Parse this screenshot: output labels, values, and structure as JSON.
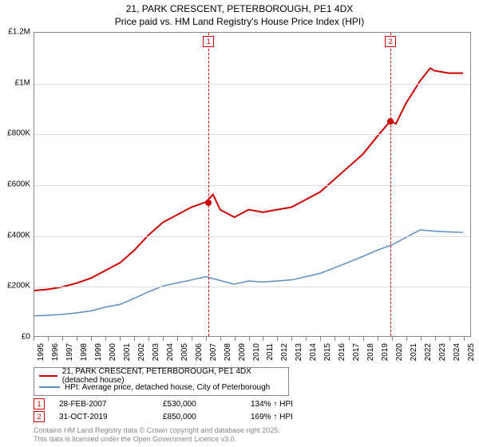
{
  "title": {
    "line1": "21, PARK CRESCENT, PETERBOROUGH, PE1 4DX",
    "line2": "Price paid vs. HM Land Registry's House Price Index (HPI)"
  },
  "chart": {
    "type": "line",
    "x_years": [
      1995,
      1996,
      1997,
      1998,
      1999,
      2000,
      2001,
      2002,
      2003,
      2004,
      2005,
      2006,
      2007,
      2008,
      2009,
      2010,
      2011,
      2012,
      2013,
      2014,
      2015,
      2016,
      2017,
      2018,
      2019,
      2020,
      2021,
      2022,
      2023,
      2024,
      2025
    ],
    "y_ticks": [
      0,
      200000,
      400000,
      600000,
      800000,
      1000000,
      1200000
    ],
    "y_tick_labels": [
      "£0",
      "£200K",
      "£400K",
      "£600K",
      "£800K",
      "£1M",
      "£1.2M"
    ],
    "ylim": [
      0,
      1200000
    ],
    "xlim": [
      1995,
      2025.5
    ],
    "background_color": "#ffffff",
    "grid_color": "#dddddd",
    "border_color": "#888888",
    "series": [
      {
        "name": "property",
        "label": "21, PARK CRESCENT, PETERBOROUGH, PE1 4DX (detached house)",
        "color": "#cc0000",
        "line_width": 2,
        "points": [
          [
            1995,
            180000
          ],
          [
            1996,
            185000
          ],
          [
            1997,
            195000
          ],
          [
            1998,
            210000
          ],
          [
            1999,
            230000
          ],
          [
            2000,
            260000
          ],
          [
            2001,
            290000
          ],
          [
            2002,
            340000
          ],
          [
            2003,
            400000
          ],
          [
            2004,
            450000
          ],
          [
            2005,
            480000
          ],
          [
            2006,
            510000
          ],
          [
            2007,
            530000
          ],
          [
            2007.5,
            560000
          ],
          [
            2008,
            500000
          ],
          [
            2009,
            470000
          ],
          [
            2010,
            500000
          ],
          [
            2011,
            490000
          ],
          [
            2012,
            500000
          ],
          [
            2013,
            510000
          ],
          [
            2014,
            540000
          ],
          [
            2015,
            570000
          ],
          [
            2016,
            620000
          ],
          [
            2017,
            670000
          ],
          [
            2018,
            720000
          ],
          [
            2019,
            790000
          ],
          [
            2019.9,
            850000
          ],
          [
            2020.3,
            840000
          ],
          [
            2021,
            920000
          ],
          [
            2022,
            1010000
          ],
          [
            2022.7,
            1060000
          ],
          [
            2023,
            1050000
          ],
          [
            2024,
            1040000
          ],
          [
            2025,
            1040000
          ]
        ]
      },
      {
        "name": "hpi",
        "label": "HPI: Average price, detached house, City of Peterborough",
        "color": "#5b8cc4",
        "line_width": 1.5,
        "points": [
          [
            1995,
            80000
          ],
          [
            1996,
            82000
          ],
          [
            1997,
            86000
          ],
          [
            1998,
            92000
          ],
          [
            1999,
            100000
          ],
          [
            2000,
            115000
          ],
          [
            2001,
            125000
          ],
          [
            2002,
            150000
          ],
          [
            2003,
            175000
          ],
          [
            2004,
            198000
          ],
          [
            2005,
            210000
          ],
          [
            2006,
            222000
          ],
          [
            2007,
            235000
          ],
          [
            2008,
            220000
          ],
          [
            2009,
            205000
          ],
          [
            2010,
            218000
          ],
          [
            2011,
            214000
          ],
          [
            2012,
            218000
          ],
          [
            2013,
            222000
          ],
          [
            2014,
            235000
          ],
          [
            2015,
            248000
          ],
          [
            2016,
            270000
          ],
          [
            2017,
            292000
          ],
          [
            2018,
            315000
          ],
          [
            2019,
            340000
          ],
          [
            2020,
            360000
          ],
          [
            2021,
            390000
          ],
          [
            2022,
            420000
          ],
          [
            2023,
            415000
          ],
          [
            2024,
            412000
          ],
          [
            2025,
            410000
          ]
        ]
      }
    ],
    "markers": [
      {
        "idx": "1",
        "year": 2007.15,
        "price": 530000
      },
      {
        "idx": "2",
        "year": 2019.83,
        "price": 850000
      }
    ]
  },
  "sales": [
    {
      "idx": "1",
      "date": "28-FEB-2007",
      "price": "£530,000",
      "hpi": "134% ↑ HPI"
    },
    {
      "idx": "2",
      "date": "31-OCT-2019",
      "price": "£850,000",
      "hpi": "169% ↑ HPI"
    }
  ],
  "copyright": {
    "line1": "Contains HM Land Registry data © Crown copyright and database right 2025.",
    "line2": "This data is licensed under the Open Government Licence v3.0."
  }
}
